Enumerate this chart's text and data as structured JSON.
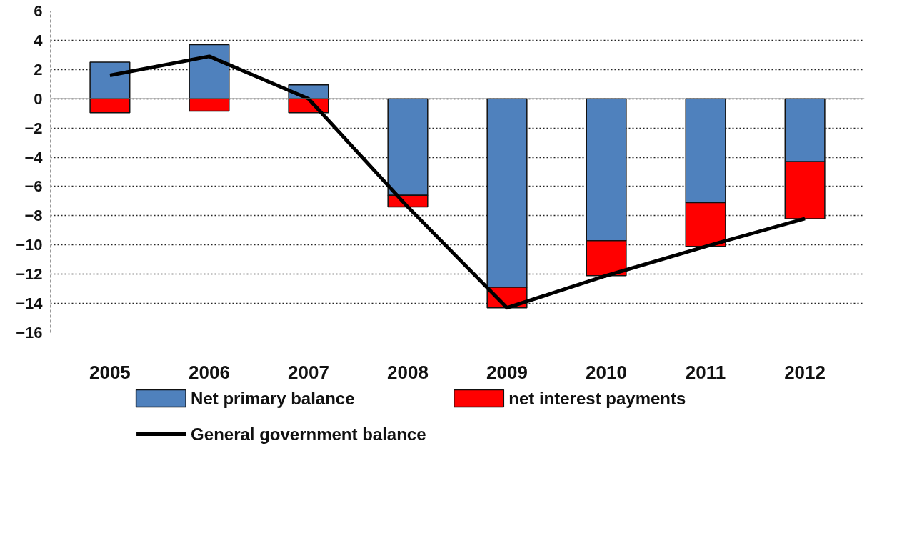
{
  "chart_data": {
    "type": "bar",
    "stacked": true,
    "categories": [
      "2005",
      "2006",
      "2007",
      "2008",
      "2009",
      "2010",
      "2011",
      "2012"
    ],
    "series": [
      {
        "name": "Net primary balance",
        "color": "#4f81bd",
        "values": [
          2.5,
          3.7,
          0.95,
          -6.6,
          -12.9,
          -9.7,
          -7.1,
          -4.3
        ]
      },
      {
        "name": "net interest payments",
        "color": "#ff0000",
        "values": [
          -0.95,
          -0.85,
          -0.95,
          -0.8,
          -1.4,
          -2.4,
          -3.0,
          -3.9
        ]
      },
      {
        "name": "General government balance",
        "type": "line",
        "color": "#000000",
        "values": [
          1.6,
          2.9,
          0.0,
          -7.4,
          -14.3,
          -12.1,
          -10.1,
          -8.2
        ]
      }
    ],
    "ylim": [
      -16,
      6
    ],
    "yticks": [
      -16,
      -14,
      -12,
      -10,
      -8,
      -6,
      -4,
      -2,
      0,
      2,
      4,
      6
    ],
    "grid": "y",
    "legend": "bottom",
    "marker": "none",
    "line_style": "solid"
  }
}
